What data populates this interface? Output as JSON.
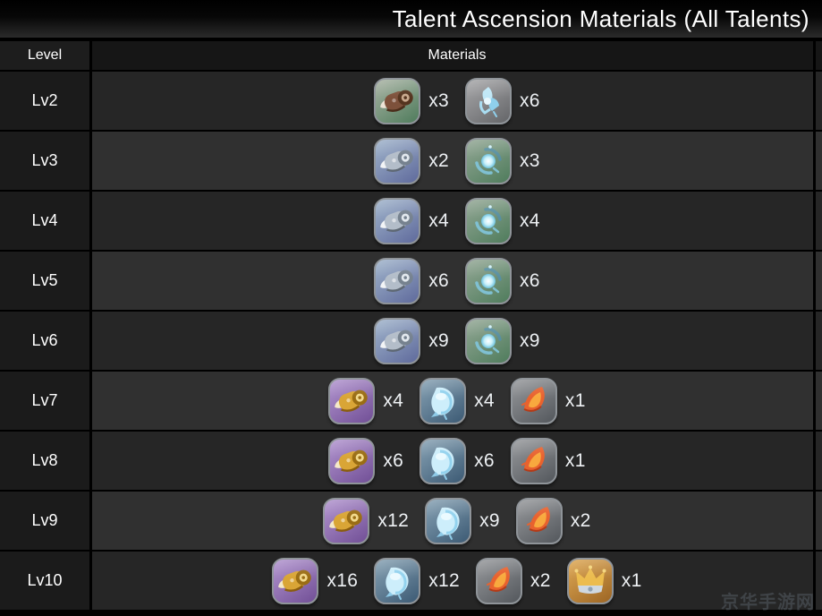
{
  "title": "Talent Ascension Materials (All Talents)",
  "table": {
    "columns": [
      "Level",
      "Materials"
    ],
    "rows": [
      {
        "level": "Lv2",
        "materials": [
          {
            "item": "brown-scroll",
            "qty": "x3"
          },
          {
            "item": "blue-crystal",
            "qty": "x6"
          }
        ]
      },
      {
        "level": "Lv3",
        "materials": [
          {
            "item": "silver-scroll",
            "qty": "x2"
          },
          {
            "item": "glowing-orb",
            "qty": "x3"
          }
        ]
      },
      {
        "level": "Lv4",
        "materials": [
          {
            "item": "silver-scroll",
            "qty": "x4"
          },
          {
            "item": "glowing-orb",
            "qty": "x4"
          }
        ]
      },
      {
        "level": "Lv5",
        "materials": [
          {
            "item": "silver-scroll",
            "qty": "x6"
          },
          {
            "item": "glowing-orb",
            "qty": "x6"
          }
        ]
      },
      {
        "level": "Lv6",
        "materials": [
          {
            "item": "silver-scroll",
            "qty": "x9"
          },
          {
            "item": "glowing-orb",
            "qty": "x9"
          }
        ]
      },
      {
        "level": "Lv7",
        "materials": [
          {
            "item": "gold-scroll",
            "qty": "x4"
          },
          {
            "item": "ice-crystal",
            "qty": "x4"
          },
          {
            "item": "flame-feather",
            "qty": "x1"
          }
        ]
      },
      {
        "level": "Lv8",
        "materials": [
          {
            "item": "gold-scroll",
            "qty": "x6"
          },
          {
            "item": "ice-crystal",
            "qty": "x6"
          },
          {
            "item": "flame-feather",
            "qty": "x1"
          }
        ]
      },
      {
        "level": "Lv9",
        "materials": [
          {
            "item": "gold-scroll",
            "qty": "x12"
          },
          {
            "item": "ice-crystal",
            "qty": "x9"
          },
          {
            "item": "flame-feather",
            "qty": "x2"
          }
        ]
      },
      {
        "level": "Lv10",
        "materials": [
          {
            "item": "gold-scroll",
            "qty": "x16"
          },
          {
            "item": "ice-crystal",
            "qty": "x12"
          },
          {
            "item": "flame-feather",
            "qty": "x2"
          },
          {
            "item": "golden-crown",
            "qty": "x1"
          }
        ]
      }
    ]
  },
  "items": {
    "brown-scroll": {
      "icon": "brown-scroll-icon",
      "bg": [
        "#a9b3a4",
        "#4f7c5c"
      ]
    },
    "blue-crystal": {
      "icon": "blue-crystal-icon",
      "bg": [
        "#a8a8aa",
        "#646568"
      ]
    },
    "silver-scroll": {
      "icon": "silver-scroll-icon",
      "bg": [
        "#a0b4cb",
        "#5f6a9c"
      ]
    },
    "glowing-orb": {
      "icon": "glowing-orb-icon",
      "bg": [
        "#93a795",
        "#4f7c5c"
      ]
    },
    "gold-scroll": {
      "icon": "gold-scroll-icon",
      "bg": [
        "#b295cf",
        "#714f96"
      ]
    },
    "ice-crystal": {
      "icon": "ice-crystal-icon",
      "bg": [
        "#87a2b4",
        "#3c5a74"
      ]
    },
    "flame-feather": {
      "icon": "flame-feather-icon",
      "bg": [
        "#97999c",
        "#53575c"
      ]
    },
    "golden-crown": {
      "icon": "golden-crown-icon",
      "bg": [
        "#dfa955",
        "#9c6524"
      ]
    }
  },
  "watermark": "京华手游网",
  "colors": {
    "row_dark": "#262626",
    "row_light": "#303030",
    "level_cell": "#1b1b1b",
    "header_bg": "#161616",
    "border": "#000000",
    "title_text": "#ffffff",
    "qty_text": "#eef1f4",
    "watermark_text": "#3f4347"
  }
}
